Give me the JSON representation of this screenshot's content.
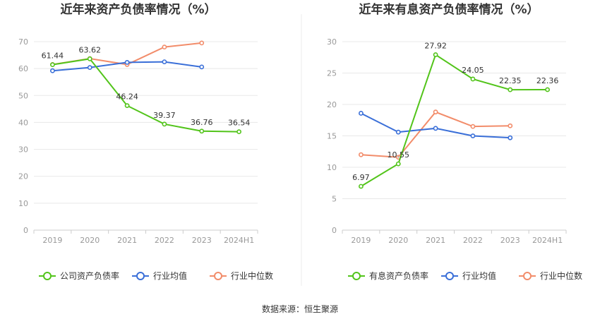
{
  "source": "数据来源：恒生聚源",
  "chart_data": [
    {
      "type": "line",
      "title": "近年来资产负债率情况（%）",
      "categories": [
        "2019",
        "2020",
        "2021",
        "2022",
        "2023",
        "2024H1"
      ],
      "ylim": [
        0,
        70
      ],
      "yticks": [
        0,
        10,
        20,
        30,
        40,
        50,
        60,
        70
      ],
      "grid": true,
      "legend_position": "bottom",
      "series": [
        {
          "name": "公司资产负债率",
          "color": "#52c41a",
          "values": [
            61.44,
            63.62,
            46.24,
            39.37,
            36.76,
            36.54
          ],
          "show_labels": true
        },
        {
          "name": "行业均值",
          "color": "#3a6fd8",
          "values": [
            59.2,
            60.4,
            62.3,
            62.5,
            60.6,
            null
          ],
          "show_labels": false
        },
        {
          "name": "行业中位数",
          "color": "#f28c6a",
          "values": [
            61.5,
            63.7,
            61.5,
            68.0,
            69.5,
            null
          ],
          "show_labels": false
        }
      ]
    },
    {
      "type": "line",
      "title": "近年来有息资产负债率情况（%）",
      "categories": [
        "2019",
        "2020",
        "2021",
        "2022",
        "2023",
        "2024H1"
      ],
      "ylim": [
        0,
        30
      ],
      "yticks": [
        0,
        5,
        10,
        15,
        20,
        25,
        30
      ],
      "grid": true,
      "legend_position": "bottom",
      "series": [
        {
          "name": "有息资产负债率",
          "color": "#52c41a",
          "values": [
            6.97,
            10.55,
            27.92,
            24.05,
            22.35,
            22.36
          ],
          "show_labels": true
        },
        {
          "name": "行业均值",
          "color": "#3a6fd8",
          "values": [
            18.6,
            15.6,
            16.2,
            15.0,
            14.7,
            null
          ],
          "show_labels": false
        },
        {
          "name": "行业中位数",
          "color": "#f28c6a",
          "values": [
            12.0,
            11.6,
            18.8,
            16.5,
            16.6,
            null
          ],
          "show_labels": false
        }
      ]
    }
  ]
}
